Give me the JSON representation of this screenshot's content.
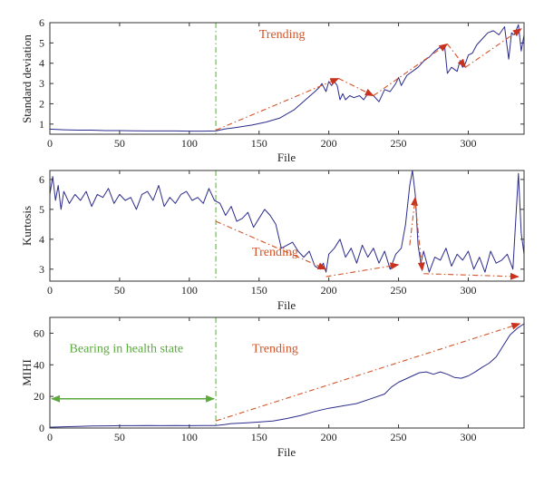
{
  "colors": {
    "series": "#2b2b8c",
    "trend": "#d2552a",
    "arrowhead": "#c8321e",
    "health": "#5aaa3c",
    "divider": "#5aaa3c"
  },
  "chart_data": [
    {
      "type": "line",
      "xlabel": "File",
      "ylabel": "Standard deviation",
      "xlim": [
        0,
        340
      ],
      "ylim": [
        0.5,
        6
      ],
      "xticks": [
        0,
        50,
        100,
        150,
        200,
        250,
        300
      ],
      "yticks": [
        1,
        2,
        3,
        4,
        5,
        6
      ],
      "grid": false,
      "divider_x": 119,
      "annotations": [
        {
          "text": "Trending",
          "x": 150,
          "y": 5.25,
          "color": "#d2552a"
        }
      ],
      "trend_arrows": [
        {
          "from": [
            119,
            0.7
          ],
          "to": [
            207,
            3.25
          ]
        },
        {
          "from": [
            207,
            3.25
          ],
          "to": [
            232,
            2.4
          ]
        },
        {
          "from": [
            232,
            2.4
          ],
          "to": [
            285,
            4.95
          ]
        },
        {
          "from": [
            285,
            4.95
          ],
          "to": [
            298,
            3.8
          ]
        },
        {
          "from": [
            298,
            3.8
          ],
          "to": [
            338,
            5.7
          ]
        }
      ],
      "series": [
        {
          "x": [
            0,
            10,
            20,
            30,
            40,
            50,
            60,
            70,
            80,
            90,
            100,
            110,
            119,
            125,
            135,
            145,
            155,
            165,
            170,
            175,
            180,
            185,
            190,
            193,
            195,
            198,
            200,
            202,
            204,
            206,
            208,
            210,
            212,
            215,
            218,
            222,
            225,
            228,
            232,
            236,
            240,
            244,
            248,
            250,
            252,
            256,
            260,
            264,
            268,
            272,
            276,
            280,
            283,
            285,
            288,
            292,
            294,
            296,
            298,
            300,
            303,
            306,
            310,
            314,
            318,
            322,
            326,
            329,
            331,
            333,
            336,
            338,
            340
          ],
          "y": [
            0.75,
            0.72,
            0.7,
            0.7,
            0.68,
            0.68,
            0.67,
            0.66,
            0.66,
            0.66,
            0.65,
            0.65,
            0.66,
            0.75,
            0.85,
            0.95,
            1.1,
            1.3,
            1.5,
            1.7,
            2.0,
            2.3,
            2.6,
            2.8,
            3.0,
            2.6,
            3.1,
            2.9,
            3.1,
            2.9,
            2.2,
            2.5,
            2.2,
            2.4,
            2.3,
            2.4,
            2.2,
            2.5,
            2.4,
            2.1,
            2.7,
            2.6,
            3.0,
            3.3,
            2.9,
            3.4,
            3.6,
            3.8,
            4.1,
            4.3,
            4.6,
            4.8,
            4.9,
            3.5,
            3.8,
            3.6,
            4.1,
            3.8,
            4.0,
            4.4,
            4.5,
            4.9,
            5.2,
            5.5,
            5.6,
            5.4,
            5.8,
            4.2,
            5.5,
            5.4,
            5.9,
            4.6,
            5.4
          ]
        }
      ]
    },
    {
      "type": "line",
      "xlabel": "File",
      "ylabel": "Kurtosis",
      "xlim": [
        0,
        340
      ],
      "ylim": [
        2.6,
        6.3
      ],
      "xticks": [
        0,
        50,
        100,
        150,
        200,
        250,
        300
      ],
      "yticks": [
        3,
        4,
        5,
        6
      ],
      "grid": false,
      "divider_x": 119,
      "annotations": [
        {
          "text": "Trending",
          "x": 145,
          "y": 3.45,
          "color": "#d2552a"
        }
      ],
      "trend_arrows": [
        {
          "from": [
            119,
            4.6
          ],
          "to": [
            198,
            3.0
          ]
        },
        {
          "from": [
            198,
            2.75
          ],
          "to": [
            250,
            3.15
          ]
        },
        {
          "from": [
            258,
            3.8
          ],
          "to": [
            262,
            5.4
          ]
        },
        {
          "from": [
            262,
            5.2
          ],
          "to": [
            267,
            2.95
          ]
        },
        {
          "from": [
            268,
            2.85
          ],
          "to": [
            336,
            2.75
          ]
        }
      ],
      "series": [
        {
          "x": [
            0,
            2,
            4,
            6,
            8,
            10,
            14,
            18,
            22,
            26,
            30,
            34,
            38,
            42,
            46,
            50,
            54,
            58,
            62,
            66,
            70,
            74,
            78,
            82,
            86,
            90,
            94,
            98,
            102,
            106,
            110,
            114,
            118,
            122,
            126,
            130,
            134,
            138,
            142,
            146,
            150,
            154,
            158,
            162,
            166,
            170,
            174,
            178,
            182,
            186,
            190,
            194,
            196,
            198,
            200,
            204,
            208,
            212,
            216,
            220,
            224,
            228,
            232,
            236,
            240,
            244,
            248,
            252,
            255,
            258,
            260,
            262,
            264,
            266,
            268,
            272,
            276,
            280,
            284,
            288,
            292,
            296,
            300,
            304,
            308,
            312,
            316,
            320,
            324,
            328,
            332,
            336,
            338,
            340
          ],
          "y": [
            5.5,
            6.1,
            5.3,
            5.8,
            5.0,
            5.6,
            5.2,
            5.5,
            5.3,
            5.6,
            5.1,
            5.5,
            5.4,
            5.7,
            5.2,
            5.5,
            5.3,
            5.4,
            5.0,
            5.5,
            5.6,
            5.3,
            5.8,
            5.1,
            5.4,
            5.2,
            5.5,
            5.6,
            5.3,
            5.4,
            5.2,
            5.7,
            5.3,
            5.2,
            4.8,
            5.1,
            4.6,
            4.7,
            4.9,
            4.4,
            4.7,
            5.0,
            4.8,
            4.5,
            3.7,
            3.8,
            3.9,
            3.6,
            3.4,
            3.6,
            3.1,
            3.0,
            3.2,
            2.9,
            3.5,
            3.7,
            4.0,
            3.4,
            3.7,
            3.2,
            3.8,
            3.4,
            3.7,
            3.2,
            3.6,
            3.0,
            3.5,
            3.7,
            4.5,
            5.8,
            6.3,
            5.5,
            3.8,
            3.2,
            3.6,
            2.9,
            3.4,
            3.3,
            3.7,
            3.1,
            3.5,
            3.3,
            3.6,
            3.0,
            3.4,
            2.9,
            3.6,
            3.2,
            3.3,
            3.5,
            3.0,
            6.2,
            4.2,
            3.5
          ]
        }
      ]
    },
    {
      "type": "line",
      "xlabel": "File",
      "ylabel": "MIHI",
      "xlim": [
        0,
        340
      ],
      "ylim": [
        0,
        70
      ],
      "xticks": [
        0,
        50,
        100,
        150,
        200,
        250,
        300
      ],
      "yticks": [
        0,
        20,
        40,
        60
      ],
      "grid": false,
      "divider_x": 119,
      "annotations": [
        {
          "text": "Bearing in health state",
          "x": 14,
          "y": 48,
          "color": "#5aaa3c"
        },
        {
          "text": "Trending",
          "x": 145,
          "y": 48,
          "color": "#d2552a"
        }
      ],
      "health_arrow": {
        "from": [
          0,
          18.5
        ],
        "to": [
          119,
          18.5
        ]
      },
      "trend_arrows": [
        {
          "from": [
            119,
            4.5
          ],
          "to": [
            337,
            66
          ]
        }
      ],
      "series": [
        {
          "x": [
            0,
            10,
            20,
            30,
            40,
            50,
            60,
            70,
            80,
            90,
            100,
            110,
            119,
            125,
            130,
            140,
            150,
            160,
            170,
            180,
            190,
            200,
            210,
            220,
            230,
            240,
            245,
            250,
            255,
            260,
            265,
            270,
            275,
            280,
            285,
            290,
            295,
            300,
            305,
            310,
            315,
            320,
            325,
            330,
            335,
            340
          ],
          "y": [
            0.5,
            0.8,
            1.0,
            1.3,
            1.4,
            1.5,
            1.5,
            1.6,
            1.5,
            1.6,
            1.5,
            1.6,
            1.6,
            2.2,
            2.8,
            3.2,
            3.8,
            4.5,
            6.0,
            8.0,
            10.5,
            12.5,
            14.0,
            15.5,
            18.5,
            21.5,
            26.0,
            29.0,
            31.0,
            33.0,
            35.0,
            35.5,
            34.0,
            35.5,
            34.0,
            32.0,
            31.5,
            33.0,
            35.5,
            38.5,
            41.0,
            45.0,
            52.0,
            59.0,
            63.0,
            66.0
          ]
        }
      ]
    }
  ]
}
